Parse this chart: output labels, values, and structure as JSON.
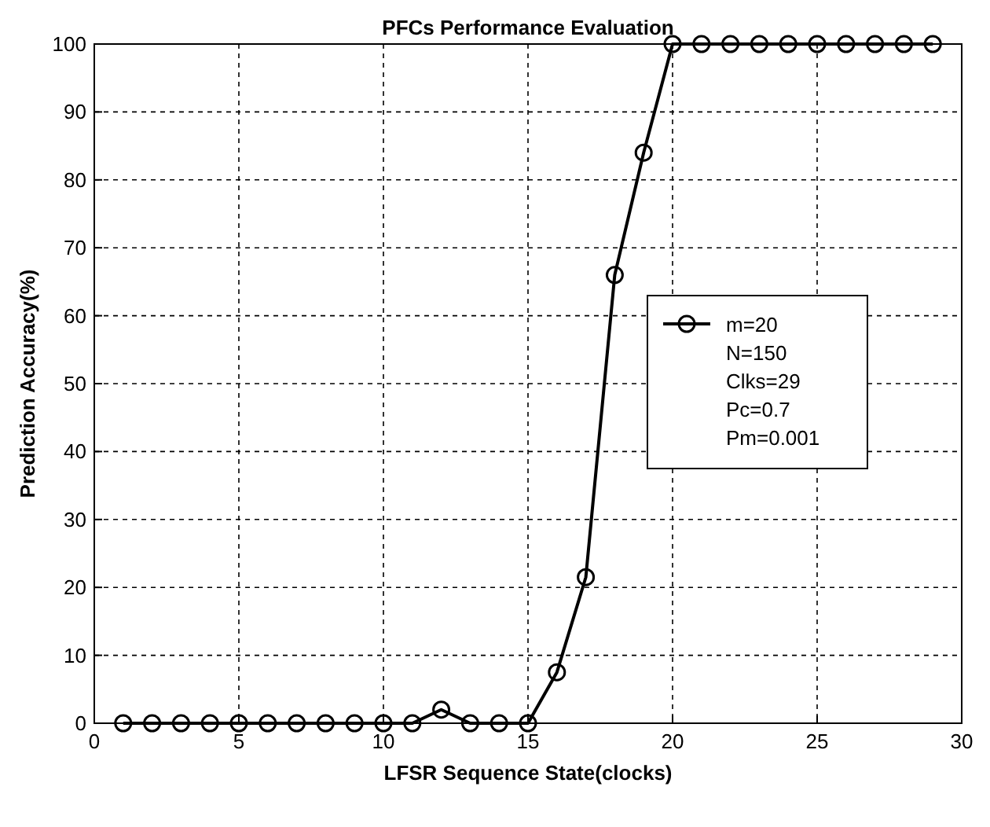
{
  "chart_data": {
    "type": "line",
    "title": "PFCs Performance Evaluation",
    "xlabel": "LFSR Sequence State(clocks)",
    "ylabel": "Prediction Accuracy(%)",
    "x": [
      1,
      2,
      3,
      4,
      5,
      6,
      7,
      8,
      9,
      10,
      11,
      12,
      13,
      14,
      15,
      16,
      17,
      18,
      19,
      20,
      21,
      22,
      23,
      24,
      25,
      26,
      27,
      28,
      29
    ],
    "series": [
      {
        "name": "m=20",
        "color": "#000000",
        "values": [
          0,
          0,
          0,
          0,
          0,
          0,
          0,
          0,
          0,
          0,
          0,
          2,
          0,
          0,
          0,
          7.5,
          21.5,
          66,
          84,
          100,
          100,
          100,
          100,
          100,
          100,
          100,
          100,
          100,
          100
        ]
      }
    ],
    "annotations": [
      "N=150",
      "Clks=29",
      "Pc=0.7",
      "Pm=0.001"
    ],
    "xlim": [
      0,
      30
    ],
    "xticks": [
      0,
      5,
      10,
      15,
      20,
      25,
      30
    ],
    "ylim": [
      0,
      100
    ],
    "yticks": [
      0,
      10,
      20,
      30,
      40,
      50,
      60,
      70,
      80,
      90,
      100
    ],
    "grid": true,
    "legend": "right",
    "marker": "circle",
    "line_style": "solid"
  }
}
